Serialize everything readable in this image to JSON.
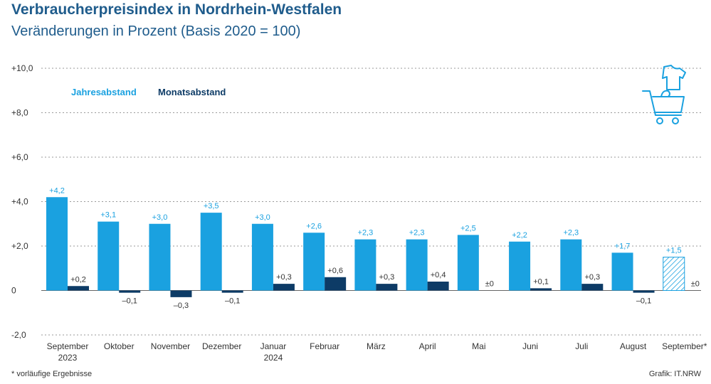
{
  "header": {
    "title": "Verbraucherpreisindex in Nordrhein-Westfalen",
    "subtitle": "Veränderungen in Prozent (Basis 2020 = 100)"
  },
  "footer": {
    "footnote": "* vorläufige Ergebnisse",
    "source": "Grafik: IT.NRW"
  },
  "colors": {
    "jahresabstand": "#1aa1e0",
    "monatsabstand": "#0d3b66",
    "grid": "#9a9a9a",
    "text": "#333333"
  },
  "icon": "shopping-cart-clothes-icon",
  "chart_data": {
    "type": "bar",
    "ylim": [
      -2.0,
      10.0
    ],
    "yticks": [
      -2.0,
      0,
      2.0,
      4.0,
      6.0,
      8.0,
      10.0
    ],
    "ytick_labels": [
      "-2,0",
      "0",
      "+2,0",
      "+4,0",
      "+6,0",
      "+8,0",
      "+10,0"
    ],
    "grid": true,
    "legend_position": "top-left",
    "categories": [
      [
        "September",
        "2023"
      ],
      [
        "Oktober"
      ],
      [
        "November"
      ],
      [
        "Dezember"
      ],
      [
        "Januar",
        "2024"
      ],
      [
        "Februar"
      ],
      [
        "März"
      ],
      [
        "April"
      ],
      [
        "Mai"
      ],
      [
        "Juni"
      ],
      [
        "Juli"
      ],
      [
        "August"
      ],
      [
        "September*"
      ]
    ],
    "series": [
      {
        "name": "Jahresabstand",
        "values": [
          4.2,
          3.1,
          3.0,
          3.5,
          3.0,
          2.6,
          2.3,
          2.3,
          2.5,
          2.2,
          2.3,
          1.7,
          1.5
        ],
        "labels": [
          "+4,2",
          "+3,1",
          "+3,0",
          "+3,5",
          "+3,0",
          "+2,6",
          "+2,3",
          "+2,3",
          "+2,5",
          "+2,2",
          "+2,3",
          "+1,7",
          "+1,5"
        ],
        "provisional_last": true
      },
      {
        "name": "Monatsabstand",
        "values": [
          0.2,
          -0.1,
          -0.3,
          -0.1,
          0.3,
          0.6,
          0.3,
          0.4,
          0.0,
          0.1,
          0.3,
          -0.1,
          0.0
        ],
        "labels": [
          "+0,2",
          "–0,1",
          "–0,3",
          "–0,1",
          "+0,3",
          "+0,6",
          "+0,3",
          "+0,4",
          "±0",
          "+0,1",
          "+0,3",
          "–0,1",
          "±0"
        ]
      }
    ]
  }
}
